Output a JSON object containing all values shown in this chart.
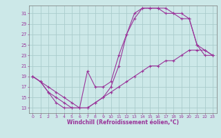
{
  "background_color": "#cce8e8",
  "grid_color": "#aacccc",
  "line_color": "#993399",
  "xlabel": "Windchill (Refroidissement éolien,°C)",
  "xlim": [
    -0.5,
    23.5
  ],
  "ylim": [
    12,
    32.5
  ],
  "yticks": [
    13,
    15,
    17,
    19,
    21,
    23,
    25,
    27,
    29,
    31
  ],
  "xticks": [
    0,
    1,
    2,
    3,
    4,
    5,
    6,
    7,
    8,
    9,
    10,
    11,
    12,
    13,
    14,
    15,
    16,
    17,
    18,
    19,
    20,
    21,
    22,
    23
  ],
  "curve1_x": [
    0,
    1,
    2,
    3,
    4,
    5,
    6,
    7,
    8,
    9,
    10,
    11,
    12,
    13,
    14,
    15,
    16,
    17,
    18,
    19,
    20,
    21,
    22,
    23
  ],
  "curve1_y": [
    19,
    18,
    16,
    15,
    14,
    13,
    13,
    20,
    17,
    17,
    18,
    23,
    27,
    31,
    32,
    32,
    32,
    32,
    31,
    31,
    30,
    25,
    23,
    23
  ],
  "curve2_x": [
    0,
    1,
    2,
    3,
    4,
    5,
    6,
    7,
    8,
    9,
    10,
    11,
    12,
    13,
    14,
    15,
    16,
    17,
    18,
    19,
    20,
    21,
    22,
    23
  ],
  "curve2_y": [
    19,
    18,
    17,
    16,
    15,
    14,
    13,
    13,
    14,
    15,
    16,
    17,
    18,
    19,
    20,
    21,
    21,
    22,
    22,
    23,
    24,
    24,
    24,
    23
  ],
  "curve3_x": [
    0,
    1,
    2,
    3,
    4,
    5,
    6,
    7,
    8,
    9,
    10,
    11,
    12,
    13,
    14,
    15,
    16,
    17,
    18,
    19,
    20,
    21,
    22,
    23
  ],
  "curve3_y": [
    19,
    18,
    16,
    14,
    13,
    13,
    13,
    13,
    14,
    15,
    17,
    21,
    27,
    30,
    32,
    32,
    32,
    31,
    31,
    30,
    30,
    25,
    24,
    23
  ]
}
